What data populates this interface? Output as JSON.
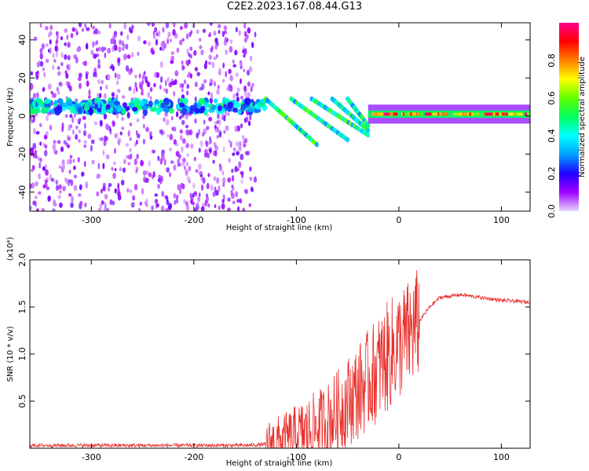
{
  "page": {
    "title": "C2E2.2023.167.08.44.G13"
  },
  "chart_data": [
    {
      "type": "heatmap",
      "title": "C2E2.2023.167.08.44.G13",
      "xlabel": "Height of straight line (km)",
      "ylabel": "Frequency (Hz)",
      "xlim": [
        -360,
        128
      ],
      "ylim": [
        -50,
        49
      ],
      "x_ticks": [
        -300,
        -200,
        -100,
        0,
        100
      ],
      "x_tick_labels": [
        "-300",
        "-200",
        "-100",
        "0",
        "100"
      ],
      "y_ticks": [
        -40,
        -20,
        0,
        20,
        40
      ],
      "y_tick_labels": [
        "-40",
        "-20",
        "0",
        "20",
        "40"
      ],
      "colorbar": {
        "label": "Normalized spectral amplitude",
        "range": [
          0,
          1
        ],
        "ticks": [
          0.0,
          0.2,
          0.4,
          0.6,
          0.8
        ],
        "tick_labels": [
          "0.0",
          "0.2",
          "0.4",
          "0.6",
          "0.8"
        ],
        "colors": [
          "#e8d8ff",
          "#a000ff",
          "#2000ff",
          "#00a0ff",
          "#00ffff",
          "#00ff60",
          "#60ff00",
          "#ffff00",
          "#ff8000",
          "#ff0000",
          "#ff0090"
        ]
      },
      "features": [
        {
          "name": "noise_region",
          "x_range": [
            -360,
            -140
          ],
          "freq_range": [
            -50,
            49
          ],
          "amplitude": 0.1
        },
        {
          "name": "main_band",
          "x_range": [
            -360,
            -130
          ],
          "freq": 5,
          "amplitude": 0.35
        },
        {
          "name": "descending_branches",
          "x_range": [
            -130,
            -30
          ],
          "start_freq": 5,
          "end_freq": -20,
          "amplitude": 0.45
        },
        {
          "name": "post_zero_band",
          "x_range": [
            -30,
            128
          ],
          "freq": 1,
          "amplitude": 0.9
        }
      ],
      "grid": false
    },
    {
      "type": "line",
      "title": "",
      "xlabel": "Height of straight line (km)",
      "ylabel": "SNR (10 * v/v)",
      "y_multiplier": "(x10⁴)",
      "xlim": [
        -360,
        128
      ],
      "ylim": [
        0,
        2.0
      ],
      "x_ticks": [
        -300,
        -200,
        -100,
        0,
        100
      ],
      "x_tick_labels": [
        "-300",
        "-200",
        "-100",
        "0",
        "100"
      ],
      "y_ticks": [
        0.5,
        1.0,
        1.5,
        2.0
      ],
      "y_tick_labels": [
        "0.5",
        "1.0",
        "1.5",
        "2.0"
      ],
      "series": [
        {
          "color": "#e8302c",
          "x": [
            -360,
            -300,
            -250,
            -200,
            -150,
            -130,
            -110,
            -100,
            -90,
            -80,
            -70,
            -60,
            -50,
            -40,
            -30,
            -20,
            -10,
            0,
            10,
            20,
            30,
            40,
            60,
            80,
            100,
            128
          ],
          "y": [
            0.03,
            0.03,
            0.03,
            0.03,
            0.03,
            0.04,
            0.08,
            0.13,
            0.17,
            0.22,
            0.28,
            0.38,
            0.5,
            0.6,
            0.72,
            0.85,
            0.98,
            1.1,
            1.2,
            1.35,
            1.5,
            1.6,
            1.63,
            1.6,
            1.57,
            1.55
          ]
        }
      ],
      "grid": false
    }
  ]
}
